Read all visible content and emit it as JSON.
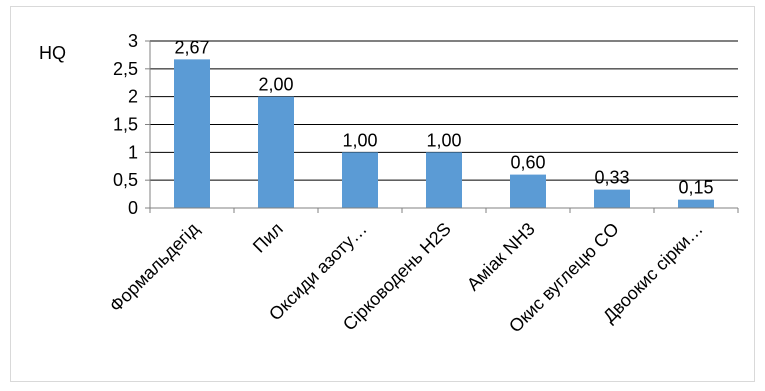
{
  "chart_data": {
    "type": "bar",
    "title": "",
    "xlabel": "",
    "ylabel": "HQ",
    "ylim": [
      0,
      3
    ],
    "yticks": [
      "0",
      "0,5",
      "1",
      "1,5",
      "2",
      "2,5",
      "3"
    ],
    "ytick_values": [
      0,
      0.5,
      1,
      1.5,
      2,
      2.5,
      3
    ],
    "grid": true,
    "categories": [
      "Формальдегід",
      "Пил",
      "Оксиди азоту…",
      "Сірководень H2S",
      "Аміак NH3",
      "Окис вуглецю CO",
      "Двоокис сірки…"
    ],
    "values": [
      2.67,
      2.0,
      1.0,
      1.0,
      0.6,
      0.33,
      0.15
    ],
    "data_labels": [
      "2,67",
      "2,00",
      "1,00",
      "1,00",
      "0,60",
      "0,33",
      "0,15"
    ],
    "bar_color": "#5b9bd5",
    "grid_color": "#000000",
    "axis_color": "#808080"
  }
}
